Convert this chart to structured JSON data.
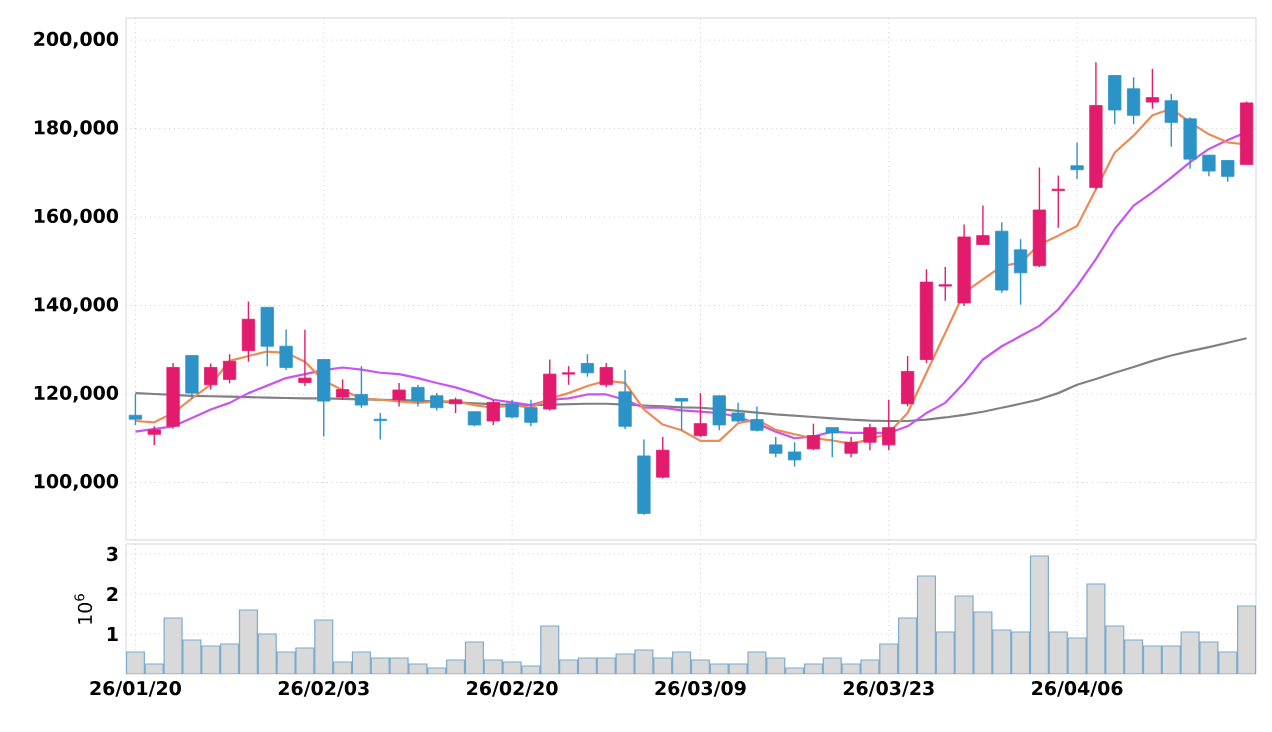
{
  "chart_data": [
    {
      "type": "candlestick",
      "categories": [
        null,
        null,
        null,
        null,
        null,
        null,
        null,
        null,
        null,
        null,
        null,
        null,
        null,
        null,
        null,
        null,
        null,
        null,
        null,
        null,
        null,
        null,
        null,
        null,
        null,
        null,
        null,
        null,
        null,
        null,
        null,
        null,
        null,
        null,
        null,
        null,
        null,
        null,
        null,
        null,
        null,
        null,
        null,
        null,
        null,
        null,
        null,
        null,
        null,
        null,
        null,
        null,
        null,
        null,
        null,
        null,
        null,
        null,
        null,
        null
      ],
      "ohlc": [
        [
          115200,
          120000,
          113000,
          114300
        ],
        [
          110900,
          112700,
          108500,
          111900
        ],
        [
          112700,
          127000,
          112200,
          126000
        ],
        [
          128700,
          128700,
          119000,
          120200
        ],
        [
          122100,
          126900,
          121000,
          126000
        ],
        [
          123300,
          129000,
          122400,
          127400
        ],
        [
          129800,
          140900,
          127300,
          136900
        ],
        [
          139600,
          139600,
          126300,
          130800
        ],
        [
          130800,
          134600,
          125400,
          126000
        ],
        [
          122600,
          134500,
          121800,
          123600
        ],
        [
          127800,
          127800,
          110400,
          118400
        ],
        [
          119300,
          123300,
          118700,
          121000
        ],
        [
          119900,
          126300,
          116900,
          117500
        ],
        [
          114300,
          115700,
          109700,
          114000
        ],
        [
          118700,
          122500,
          117200,
          120900
        ],
        [
          121500,
          122100,
          117200,
          118400
        ],
        [
          119600,
          120200,
          116300,
          116900
        ],
        [
          117800,
          119200,
          115700,
          118700
        ],
        [
          116000,
          116000,
          112700,
          113000
        ],
        [
          113900,
          118700,
          113000,
          118100
        ],
        [
          117800,
          118700,
          114500,
          114800
        ],
        [
          116900,
          118700,
          112700,
          113600
        ],
        [
          116600,
          127800,
          116300,
          124500
        ],
        [
          124500,
          126300,
          122100,
          124800
        ],
        [
          126900,
          129000,
          123900,
          124800
        ],
        [
          122100,
          127000,
          121500,
          126000
        ],
        [
          120500,
          125400,
          112100,
          112700
        ],
        [
          106000,
          109700,
          92700,
          93000
        ],
        [
          101200,
          110300,
          100900,
          107300
        ],
        [
          119000,
          119000,
          111800,
          118400
        ],
        [
          110600,
          120200,
          110300,
          113300
        ],
        [
          119600,
          119600,
          111800,
          113000
        ],
        [
          115700,
          118100,
          113600,
          113900
        ],
        [
          114200,
          117200,
          111500,
          111800
        ],
        [
          108500,
          110300,
          105700,
          106600
        ],
        [
          106900,
          109100,
          103600,
          105100
        ],
        [
          107600,
          113300,
          107300,
          110600
        ],
        [
          112400,
          112400,
          105700,
          111200
        ],
        [
          106600,
          110300,
          105700,
          109100
        ],
        [
          109100,
          113300,
          107300,
          112400
        ],
        [
          108500,
          118700,
          107300,
          112400
        ],
        [
          117800,
          128600,
          117200,
          125100
        ],
        [
          127800,
          148200,
          127000,
          145300
        ],
        [
          144400,
          148700,
          141100,
          144700
        ],
        [
          140600,
          158300,
          139900,
          155500
        ],
        [
          153800,
          162600,
          153800,
          155800
        ],
        [
          156800,
          158800,
          142900,
          143500
        ],
        [
          152600,
          155000,
          140200,
          147400
        ],
        [
          149000,
          171200,
          148700,
          161600
        ],
        [
          166000,
          169400,
          157600,
          166300
        ],
        [
          171600,
          176800,
          168600,
          170700
        ],
        [
          166700,
          195000,
          166300,
          185200
        ],
        [
          192000,
          192000,
          181000,
          184200
        ],
        [
          189000,
          191600,
          181000,
          183000
        ],
        [
          186000,
          193500,
          184500,
          187000
        ],
        [
          186300,
          187800,
          175900,
          181400
        ],
        [
          182200,
          182500,
          170900,
          173100
        ],
        [
          174000,
          174000,
          169200,
          170400
        ],
        [
          172800,
          172800,
          168000,
          169200
        ],
        [
          171900,
          186100,
          171900,
          185800
        ]
      ],
      "colors": [
        "#2b93c8",
        "#e31b6d",
        "#e31b6d",
        "#2b93c8",
        "#e31b6d",
        "#e31b6d",
        "#e31b6d",
        "#2b93c8",
        "#2b93c8",
        "#e31b6d",
        "#2b93c8",
        "#e31b6d",
        "#2b93c8",
        "#2b93c8",
        "#e31b6d",
        "#2b93c8",
        "#2b93c8",
        "#e31b6d",
        "#2b93c8",
        "#e31b6d",
        "#2b93c8",
        "#2b93c8",
        "#e31b6d",
        "#e31b6d",
        "#2b93c8",
        "#e31b6d",
        "#2b93c8",
        "#2b93c8",
        "#e31b6d",
        "#2b93c8",
        "#e31b6d",
        "#2b93c8",
        "#2b93c8",
        "#2b93c8",
        "#2b93c8",
        "#2b93c8",
        "#e31b6d",
        "#2b93c8",
        "#e31b6d",
        "#e31b6d",
        "#e31b6d",
        "#e31b6d",
        "#e31b6d",
        "#e31b6d",
        "#e31b6d",
        "#e31b6d",
        "#2b93c8",
        "#2b93c8",
        "#e31b6d",
        "#e31b6d",
        "#2b93c8",
        "#e31b6d",
        "#2b93c8",
        "#2b93c8",
        "#e31b6d",
        "#2b93c8",
        "#2b93c8",
        "#2b93c8",
        "#2b93c8",
        "#e31b6d"
      ],
      "series": [
        {
          "type": "line",
          "color": "#808080",
          "values": [
            120200,
            120000,
            119800,
            119600,
            119500,
            119400,
            119300,
            119200,
            119100,
            119000,
            119000,
            118900,
            118800,
            118700,
            118600,
            118500,
            118300,
            118100,
            117900,
            117700,
            117500,
            117500,
            117600,
            117700,
            117800,
            117800,
            117600,
            117400,
            117200,
            117000,
            116900,
            116600,
            116200,
            115800,
            115400,
            115100,
            114800,
            114500,
            114200,
            114000,
            113900,
            113900,
            114200,
            114700,
            115300,
            116000,
            116900,
            117800,
            118800,
            120200,
            122100,
            123400,
            124800,
            126100,
            127500,
            128700,
            129700,
            130600,
            131600,
            132600
          ]
        },
        {
          "type": "line",
          "color": "#c955ee",
          "values": [
            111500,
            112100,
            112700,
            114600,
            116500,
            118000,
            120200,
            121900,
            123600,
            124500,
            125400,
            126000,
            125500,
            124800,
            124500,
            123600,
            122500,
            121500,
            120200,
            118700,
            118100,
            117500,
            118700,
            119000,
            119900,
            119900,
            118700,
            116900,
            116900,
            116300,
            116000,
            115700,
            114800,
            113300,
            111500,
            110000,
            110400,
            111500,
            111200,
            111200,
            111200,
            112700,
            115700,
            118000,
            122500,
            127800,
            130800,
            133100,
            135400,
            139100,
            144400,
            150500,
            157300,
            162600,
            165600,
            168900,
            172400,
            175400,
            177400,
            179200
          ]
        },
        {
          "type": "line",
          "color": "#ee8a55",
          "values": [
            113900,
            113600,
            115700,
            119000,
            122100,
            127500,
            128600,
            129600,
            129300,
            127300,
            123000,
            120900,
            119000,
            118700,
            118300,
            118000,
            118300,
            118400,
            117500,
            116900,
            117500,
            116900,
            119000,
            120200,
            121800,
            123000,
            122500,
            116500,
            113100,
            111800,
            109400,
            109400,
            113400,
            114200,
            111900,
            110900,
            110000,
            109500,
            108800,
            109700,
            111200,
            115700,
            124800,
            133800,
            142900,
            145900,
            148900,
            149700,
            153800,
            155800,
            158000,
            null,
            174600,
            178400,
            183000,
            184500,
            181400,
            178700,
            176900,
            176400
          ]
        }
      ],
      "ylim": [
        87000,
        205000
      ],
      "yticks": [
        {
          "value": 100000,
          "label": "100,000"
        },
        {
          "value": 120000,
          "label": "120,000"
        },
        {
          "value": 140000,
          "label": "140,000"
        },
        {
          "value": 160000,
          "label": "160,000"
        },
        {
          "value": 180000,
          "label": "180,000"
        },
        {
          "value": 200000,
          "label": "200,000"
        }
      ],
      "grid": true,
      "tick_labels": "y"
    },
    {
      "type": "bar",
      "categories": [
        "26/01/20",
        null,
        null,
        null,
        null,
        null,
        null,
        null,
        null,
        null,
        "26/02/03",
        null,
        null,
        null,
        null,
        null,
        null,
        null,
        null,
        null,
        "26/02/20",
        null,
        null,
        null,
        null,
        null,
        null,
        null,
        null,
        null,
        "26/03/09",
        null,
        null,
        null,
        null,
        null,
        null,
        null,
        null,
        null,
        "26/03/23",
        null,
        null,
        null,
        null,
        null,
        null,
        null,
        null,
        null,
        "26/04/06",
        null,
        null,
        null,
        null,
        null,
        null,
        null,
        null,
        null
      ],
      "values": [
        0.55,
        0.25,
        1.4,
        0.85,
        0.7,
        0.75,
        1.6,
        1.0,
        0.55,
        0.65,
        1.35,
        0.3,
        0.55,
        0.4,
        0.4,
        0.25,
        0.15,
        0.35,
        0.8,
        0.35,
        0.3,
        0.2,
        1.2,
        0.35,
        0.4,
        0.4,
        0.5,
        0.6,
        0.4,
        0.55,
        0.35,
        0.25,
        0.25,
        0.55,
        0.4,
        0.15,
        0.25,
        0.4,
        0.25,
        0.35,
        0.75,
        1.4,
        2.45,
        1.05,
        1.95,
        1.55,
        1.1,
        1.05,
        2.95,
        1.05,
        0.9,
        2.25,
        1.2,
        0.85,
        0.7,
        0.7,
        1.05,
        0.8,
        0.55,
        1.7
      ],
      "color": "#d9d9d9",
      "ylabel": "10$^{6}$",
      "ylim": [
        0,
        3.25
      ],
      "yticks": [
        1,
        2,
        3
      ],
      "grid": true
    }
  ]
}
